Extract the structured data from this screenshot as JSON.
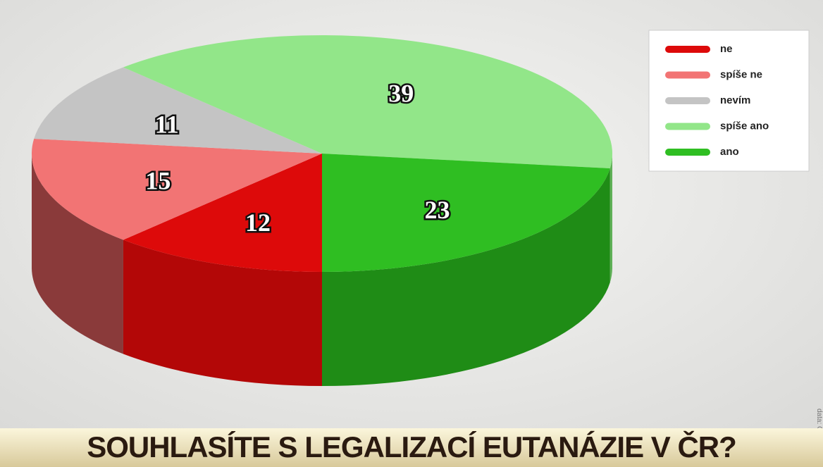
{
  "chart_data": {
    "type": "pie3d",
    "title": "SOUHLASÍTE S LEGALIZACÍ EUTANÁZIE V ČR?",
    "source": "data: CVVM",
    "categories": [
      "ne",
      "spíše ne",
      "nevím",
      "spíše ano",
      "ano"
    ],
    "values": [
      12,
      15,
      11,
      39,
      23
    ],
    "colors": [
      "#dd0a0a",
      "#f27474",
      "#c4c4c4",
      "#92e689",
      "#2fbe22"
    ],
    "side_colors": [
      "#b30707",
      "#8a3a3a",
      "#8f8f8f",
      "#5fb057",
      "#1f8c16"
    ]
  }
}
